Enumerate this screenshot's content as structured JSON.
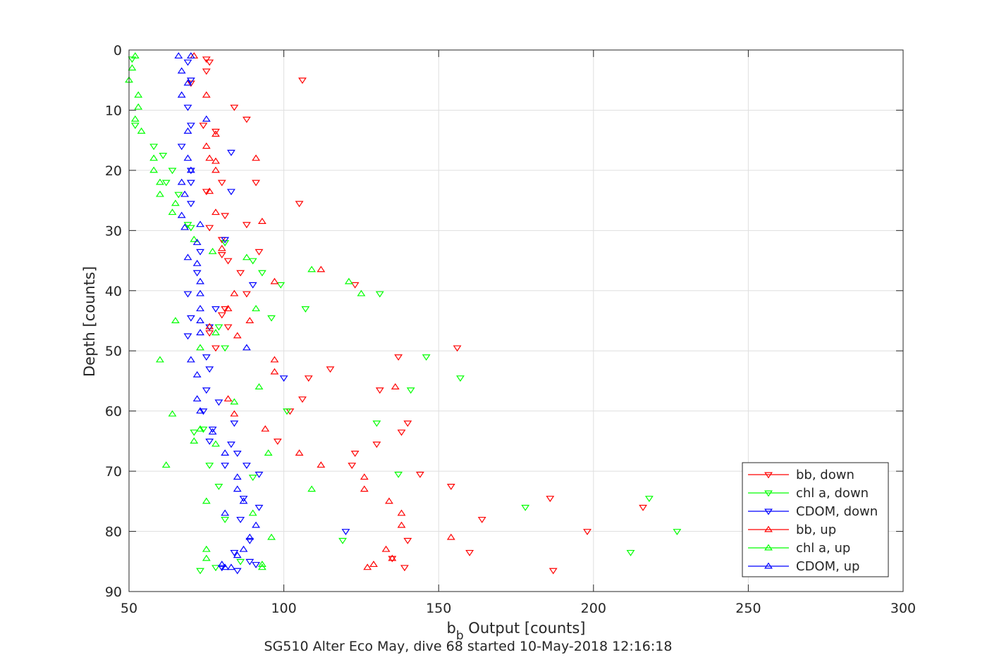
{
  "chart_data": {
    "type": "scatter",
    "xlabel_base": "b",
    "xlabel_sub": "b",
    "xlabel_rest": " Output [counts]",
    "ylabel": "Depth [counts]",
    "caption": "SG510 Alter Eco May, dive 68 started 10-May-2018 12:16:18",
    "xlim": [
      50,
      300
    ],
    "ylim": [
      0,
      90
    ],
    "y_reversed": true,
    "xticks": [
      50,
      100,
      150,
      200,
      250,
      300
    ],
    "yticks": [
      0,
      10,
      20,
      30,
      40,
      50,
      60,
      70,
      80,
      90
    ],
    "grid": true,
    "legend_position": "bottom-right",
    "series": [
      {
        "name": "bb, down",
        "color": "#ff0000",
        "marker": "triangle-down",
        "points": [
          [
            75,
            1.5
          ],
          [
            76,
            2
          ],
          [
            70,
            5.5
          ],
          [
            106,
            5
          ],
          [
            88,
            11.5
          ],
          [
            74,
            12.5
          ],
          [
            78,
            13.5
          ],
          [
            84,
            9.5
          ],
          [
            75,
            3.5
          ],
          [
            91,
            22
          ],
          [
            80,
            22
          ],
          [
            75,
            23.5
          ],
          [
            105,
            25.5
          ],
          [
            81,
            27.5
          ],
          [
            88,
            29
          ],
          [
            76,
            29.5
          ],
          [
            80,
            31.5
          ],
          [
            92,
            33.5
          ],
          [
            80,
            34
          ],
          [
            82,
            35
          ],
          [
            86,
            37
          ],
          [
            123,
            39
          ],
          [
            88,
            40.5
          ],
          [
            81,
            43
          ],
          [
            80,
            44
          ],
          [
            82,
            46
          ],
          [
            76,
            47
          ],
          [
            78,
            49.5
          ],
          [
            156,
            49.5
          ],
          [
            137,
            51
          ],
          [
            115,
            53
          ],
          [
            108,
            54.5
          ],
          [
            131,
            56.5
          ],
          [
            106,
            58
          ],
          [
            102,
            60
          ],
          [
            140,
            62
          ],
          [
            138,
            63.5
          ],
          [
            98,
            65
          ],
          [
            130,
            65.5
          ],
          [
            123,
            67
          ],
          [
            122,
            69
          ],
          [
            144,
            70.5
          ],
          [
            154,
            72.5
          ],
          [
            186,
            74.5
          ],
          [
            216,
            76
          ],
          [
            164,
            78
          ],
          [
            198,
            80
          ],
          [
            140,
            81.5
          ],
          [
            160,
            83.5
          ],
          [
            135,
            84.5
          ],
          [
            139,
            86
          ],
          [
            187,
            86.5
          ]
        ]
      },
      {
        "name": "chl a, down",
        "color": "#00ff00",
        "marker": "triangle-down",
        "points": [
          [
            51,
            1.5
          ],
          [
            52,
            12.5
          ],
          [
            58,
            16
          ],
          [
            61,
            17.5
          ],
          [
            64,
            20
          ],
          [
            62,
            22
          ],
          [
            66,
            24
          ],
          [
            69,
            29
          ],
          [
            70,
            29.5
          ],
          [
            81,
            32
          ],
          [
            90,
            35
          ],
          [
            93,
            37
          ],
          [
            99,
            39
          ],
          [
            131,
            40.5
          ],
          [
            107,
            43
          ],
          [
            96,
            44.5
          ],
          [
            79,
            46
          ],
          [
            81,
            49.5
          ],
          [
            146,
            51
          ],
          [
            157,
            54.5
          ],
          [
            141,
            56.5
          ],
          [
            101,
            60
          ],
          [
            130,
            62
          ],
          [
            71,
            63.5
          ],
          [
            74,
            63
          ],
          [
            76,
            69
          ],
          [
            90,
            71
          ],
          [
            137,
            70.5
          ],
          [
            79,
            72.5
          ],
          [
            218,
            74.5
          ],
          [
            178,
            76
          ],
          [
            81,
            78
          ],
          [
            227,
            80
          ],
          [
            119,
            81.5
          ],
          [
            212,
            83.5
          ],
          [
            86,
            85
          ],
          [
            78,
            86
          ],
          [
            73,
            86.5
          ]
        ]
      },
      {
        "name": "CDOM, down",
        "color": "#0000ff",
        "marker": "triangle-down",
        "points": [
          [
            69,
            2
          ],
          [
            70,
            5
          ],
          [
            69,
            9.5
          ],
          [
            70,
            12.5
          ],
          [
            67,
            16
          ],
          [
            70,
            20
          ],
          [
            70,
            22
          ],
          [
            83,
            23.5
          ],
          [
            70,
            25.5
          ],
          [
            83,
            17
          ],
          [
            81,
            31.5
          ],
          [
            73,
            33.5
          ],
          [
            72,
            37
          ],
          [
            90,
            39
          ],
          [
            69,
            40.5
          ],
          [
            78,
            43
          ],
          [
            70,
            44.5
          ],
          [
            76,
            46
          ],
          [
            69,
            47.5
          ],
          [
            75,
            51
          ],
          [
            76,
            53
          ],
          [
            100,
            54.5
          ],
          [
            75,
            56.5
          ],
          [
            79,
            58.5
          ],
          [
            74,
            60
          ],
          [
            84,
            62
          ],
          [
            77,
            63
          ],
          [
            76,
            65
          ],
          [
            83,
            65.5
          ],
          [
            85,
            67
          ],
          [
            81,
            69
          ],
          [
            88,
            69
          ],
          [
            92,
            70.5
          ],
          [
            87,
            74.5
          ],
          [
            92,
            76
          ],
          [
            86,
            78
          ],
          [
            120,
            80
          ],
          [
            89,
            81.5
          ],
          [
            84,
            83.5
          ],
          [
            89,
            85
          ],
          [
            91,
            85.5
          ],
          [
            85,
            86.5
          ],
          [
            80,
            86
          ]
        ]
      },
      {
        "name": "bb, up",
        "color": "#ff0000",
        "marker": "triangle-up",
        "points": [
          [
            71,
            1
          ],
          [
            75,
            7.5
          ],
          [
            78,
            14
          ],
          [
            76,
            18
          ],
          [
            91,
            18
          ],
          [
            75,
            16
          ],
          [
            78,
            18.5
          ],
          [
            78,
            20
          ],
          [
            76,
            23.5
          ],
          [
            78,
            27
          ],
          [
            93,
            28.5
          ],
          [
            80,
            33
          ],
          [
            112,
            36.5
          ],
          [
            97,
            38.5
          ],
          [
            84,
            40.5
          ],
          [
            76,
            46
          ],
          [
            82,
            43
          ],
          [
            89,
            45
          ],
          [
            85,
            47.5
          ],
          [
            97,
            51.5
          ],
          [
            97,
            53.5
          ],
          [
            136,
            56
          ],
          [
            82,
            58
          ],
          [
            84,
            60.5
          ],
          [
            94,
            63
          ],
          [
            105,
            67
          ],
          [
            112,
            69
          ],
          [
            126,
            71
          ],
          [
            126,
            73
          ],
          [
            134,
            75
          ],
          [
            138,
            77
          ],
          [
            138,
            79
          ],
          [
            154,
            81
          ],
          [
            133,
            83
          ],
          [
            129,
            85.5
          ],
          [
            127,
            86
          ],
          [
            135,
            84.5
          ]
        ]
      },
      {
        "name": "chl a, up",
        "color": "#00ff00",
        "marker": "triangle-up",
        "points": [
          [
            52,
            1
          ],
          [
            51,
            3
          ],
          [
            50,
            5
          ],
          [
            53,
            7.5
          ],
          [
            53,
            9.5
          ],
          [
            52,
            11.5
          ],
          [
            54,
            13.5
          ],
          [
            58,
            18
          ],
          [
            58,
            20
          ],
          [
            60,
            22
          ],
          [
            60,
            24
          ],
          [
            65,
            25.5
          ],
          [
            64,
            27
          ],
          [
            71,
            31.5
          ],
          [
            77,
            33.5
          ],
          [
            88,
            34.5
          ],
          [
            109,
            36.5
          ],
          [
            121,
            38.5
          ],
          [
            125,
            40.5
          ],
          [
            91,
            43
          ],
          [
            65,
            45
          ],
          [
            78,
            47
          ],
          [
            73,
            49.5
          ],
          [
            60,
            51.5
          ],
          [
            92,
            56
          ],
          [
            84,
            58.5
          ],
          [
            64,
            60.5
          ],
          [
            73,
            63
          ],
          [
            71,
            65
          ],
          [
            78,
            65.5
          ],
          [
            95,
            67
          ],
          [
            62,
            69
          ],
          [
            109,
            73
          ],
          [
            75,
            75
          ],
          [
            90,
            77
          ],
          [
            96,
            81
          ],
          [
            75,
            83
          ],
          [
            75,
            84.5
          ],
          [
            93,
            85.5
          ],
          [
            93,
            86
          ]
        ]
      },
      {
        "name": "CDOM, up",
        "color": "#0000ff",
        "marker": "triangle-up",
        "points": [
          [
            66,
            1
          ],
          [
            70,
            1
          ],
          [
            67,
            3.5
          ],
          [
            69,
            5.5
          ],
          [
            67,
            7.5
          ],
          [
            75,
            11.5
          ],
          [
            69,
            13.5
          ],
          [
            69,
            18
          ],
          [
            70,
            20
          ],
          [
            67,
            22
          ],
          [
            68,
            24
          ],
          [
            67,
            27.5
          ],
          [
            68,
            29.5
          ],
          [
            73,
            29
          ],
          [
            72,
            32
          ],
          [
            69,
            34.5
          ],
          [
            72,
            35.5
          ],
          [
            73,
            38.5
          ],
          [
            73,
            40.5
          ],
          [
            73,
            43
          ],
          [
            73,
            45
          ],
          [
            73,
            47
          ],
          [
            88,
            49.5
          ],
          [
            70,
            51.5
          ],
          [
            72,
            54
          ],
          [
            72,
            58
          ],
          [
            73,
            60
          ],
          [
            77,
            63.5
          ],
          [
            81,
            67
          ],
          [
            85,
            71
          ],
          [
            85,
            73
          ],
          [
            87,
            75
          ],
          [
            81,
            77
          ],
          [
            91,
            79
          ],
          [
            89,
            81
          ],
          [
            87,
            83
          ],
          [
            85,
            84
          ],
          [
            80,
            85.5
          ],
          [
            81,
            86
          ],
          [
            83,
            86
          ]
        ]
      }
    ]
  }
}
